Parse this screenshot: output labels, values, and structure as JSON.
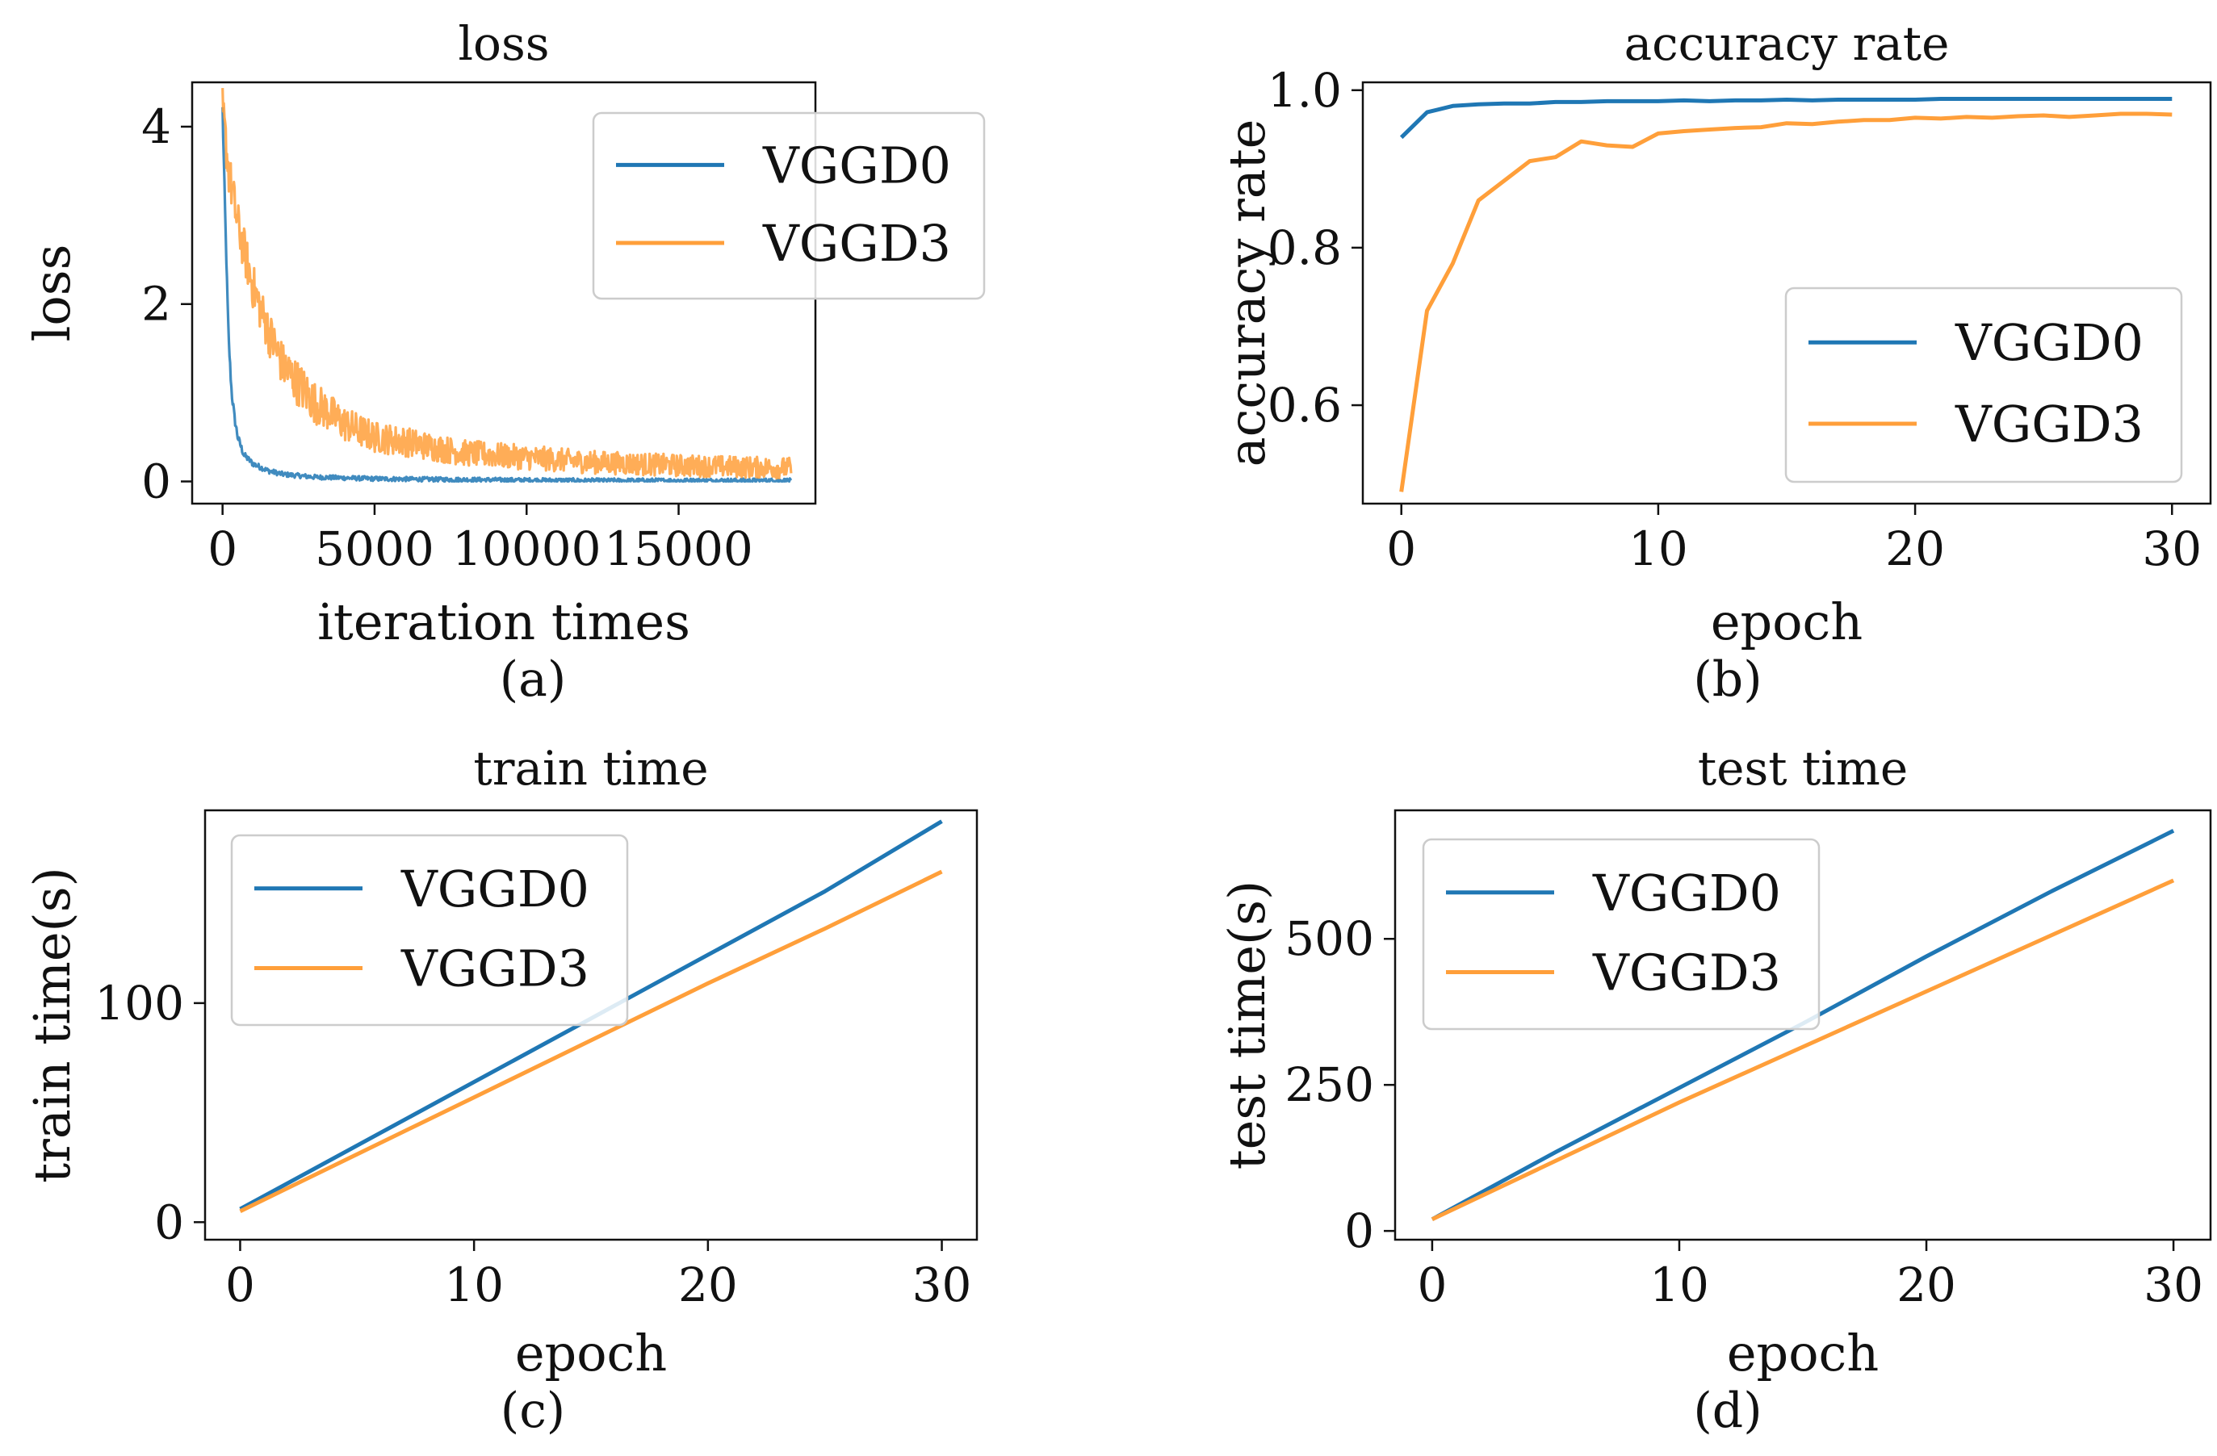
{
  "colors": {
    "series1": "#1f77b4",
    "series2": "#ff9f3a",
    "axis": "#111111",
    "background": "#ffffff"
  },
  "chart_data": [
    {
      "id": "a",
      "caption": "(a)",
      "type": "line",
      "title": "loss",
      "xlabel": "iteration times",
      "ylabel": "loss",
      "xlim": [
        -1000,
        19500
      ],
      "ylim": [
        -0.25,
        4.5
      ],
      "xticks": [
        0,
        5000,
        10000,
        15000
      ],
      "xtick_labels": [
        "0",
        "5000",
        "10000",
        "15000"
      ],
      "yticks": [
        0,
        2,
        4
      ],
      "ytick_labels": [
        "0",
        "2",
        "4"
      ],
      "legend_position": "top-right",
      "series": [
        {
          "name": "VGGD0",
          "color": "#1f77b4",
          "noise": 0.04,
          "x": [
            0,
            100,
            200,
            300,
            400,
            500,
            700,
            1000,
            1500,
            2000,
            3000,
            5000,
            8000,
            12000,
            18700
          ],
          "y": [
            4.2,
            2.8,
            1.6,
            1.0,
            0.7,
            0.5,
            0.3,
            0.2,
            0.12,
            0.08,
            0.05,
            0.03,
            0.02,
            0.01,
            0.01
          ]
        },
        {
          "name": "VGGD3",
          "color": "#ff9f3a",
          "noise": 0.16,
          "x": [
            0,
            200,
            500,
            1000,
            1500,
            2000,
            3000,
            4000,
            5000,
            6000,
            7000,
            8000,
            10000,
            12000,
            15000,
            18700
          ],
          "y": [
            4.2,
            3.5,
            2.9,
            2.2,
            1.7,
            1.3,
            0.9,
            0.65,
            0.5,
            0.45,
            0.38,
            0.32,
            0.27,
            0.22,
            0.18,
            0.15
          ]
        }
      ]
    },
    {
      "id": "b",
      "caption": "(b)",
      "type": "line",
      "title": "accuracy rate",
      "xlabel": "epoch",
      "ylabel": "accuracy rate",
      "xlim": [
        -1.5,
        31.5
      ],
      "ylim": [
        0.475,
        1.01
      ],
      "xticks": [
        0,
        10,
        20,
        30
      ],
      "xtick_labels": [
        "0",
        "10",
        "20",
        "30"
      ],
      "yticks": [
        0.6,
        0.8,
        1.0
      ],
      "ytick_labels": [
        "0.6",
        "0.8",
        "1.0"
      ],
      "legend_position": "lower-right",
      "series": [
        {
          "name": "VGGD0",
          "color": "#1f77b4",
          "x": [
            0,
            1,
            2,
            3,
            4,
            5,
            6,
            7,
            8,
            9,
            10,
            11,
            12,
            13,
            14,
            15,
            16,
            17,
            18,
            19,
            20,
            21,
            22,
            23,
            24,
            25,
            26,
            27,
            28,
            29,
            30
          ],
          "y": [
            0.94,
            0.972,
            0.98,
            0.982,
            0.983,
            0.983,
            0.985,
            0.985,
            0.986,
            0.986,
            0.986,
            0.987,
            0.986,
            0.987,
            0.987,
            0.988,
            0.987,
            0.988,
            0.988,
            0.988,
            0.988,
            0.989,
            0.989,
            0.989,
            0.989,
            0.989,
            0.989,
            0.989,
            0.989,
            0.989,
            0.989
          ]
        },
        {
          "name": "VGGD3",
          "color": "#ff9f3a",
          "x": [
            0,
            1,
            2,
            3,
            4,
            5,
            6,
            7,
            8,
            9,
            10,
            11,
            12,
            13,
            14,
            15,
            16,
            17,
            18,
            19,
            20,
            21,
            22,
            23,
            24,
            25,
            26,
            27,
            28,
            29,
            30
          ],
          "y": [
            0.49,
            0.72,
            0.78,
            0.86,
            0.885,
            0.91,
            0.915,
            0.935,
            0.93,
            0.928,
            0.945,
            0.948,
            0.95,
            0.952,
            0.953,
            0.958,
            0.957,
            0.96,
            0.962,
            0.962,
            0.965,
            0.964,
            0.966,
            0.965,
            0.967,
            0.968,
            0.966,
            0.968,
            0.97,
            0.97,
            0.969
          ]
        }
      ]
    },
    {
      "id": "c",
      "caption": "(c)",
      "type": "line",
      "title": "train time",
      "xlabel": "epoch",
      "ylabel": "train time(s)",
      "xlim": [
        -1.5,
        31.5
      ],
      "ylim": [
        -8,
        188
      ],
      "xticks": [
        0,
        10,
        20,
        30
      ],
      "xtick_labels": [
        "0",
        "10",
        "20",
        "30"
      ],
      "yticks": [
        0,
        100
      ],
      "ytick_labels": [
        "0",
        "100"
      ],
      "legend_position": "top-left",
      "series": [
        {
          "name": "VGGD0",
          "color": "#1f77b4",
          "x": [
            0,
            5,
            10,
            15,
            20,
            25,
            30
          ],
          "y": [
            6,
            35,
            64,
            93,
            122,
            151,
            183
          ]
        },
        {
          "name": "VGGD3",
          "color": "#ff9f3a",
          "x": [
            0,
            5,
            10,
            15,
            20,
            25,
            30
          ],
          "y": [
            5,
            31,
            57,
            83,
            109,
            134,
            160
          ]
        }
      ]
    },
    {
      "id": "d",
      "caption": "(d)",
      "type": "line",
      "title": "test time",
      "xlabel": "epoch",
      "ylabel": "test time(s)",
      "xlim": [
        -1.5,
        31.5
      ],
      "ylim": [
        -15,
        720
      ],
      "xticks": [
        0,
        10,
        20,
        30
      ],
      "xtick_labels": [
        "0",
        "10",
        "20",
        "30"
      ],
      "yticks": [
        0,
        250,
        500
      ],
      "ytick_labels": [
        "0",
        "250",
        "500"
      ],
      "legend_position": "top-left",
      "series": [
        {
          "name": "VGGD0",
          "color": "#1f77b4",
          "x": [
            0,
            5,
            10,
            15,
            20,
            25,
            30
          ],
          "y": [
            20,
            135,
            245,
            355,
            470,
            580,
            685
          ]
        },
        {
          "name": "VGGD3",
          "color": "#ff9f3a",
          "x": [
            0,
            5,
            10,
            15,
            20,
            25,
            30
          ],
          "y": [
            20,
            120,
            220,
            315,
            410,
            505,
            600
          ]
        }
      ]
    }
  ]
}
